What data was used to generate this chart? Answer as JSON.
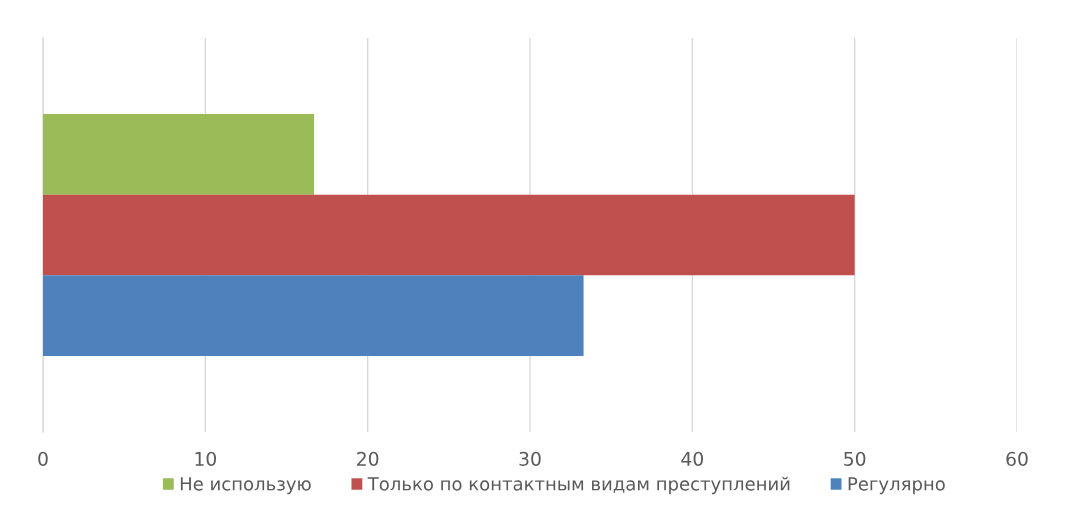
{
  "chart_data": {
    "type": "bar",
    "orientation": "horizontal",
    "categories": [
      null
    ],
    "series": [
      {
        "name": "Не использую",
        "color": "#9bbb59",
        "values": [
          16.7
        ]
      },
      {
        "name": "Только по контактным видам преступлений",
        "color": "#c0504d",
        "values": [
          50
        ]
      },
      {
        "name": "Регулярно",
        "color": "#4f81bd",
        "values": [
          33.3
        ]
      }
    ],
    "xlim": [
      0,
      60
    ],
    "xticks": [
      0,
      10,
      20,
      30,
      40,
      50,
      60
    ],
    "grid": "x",
    "legend": "bottom"
  }
}
